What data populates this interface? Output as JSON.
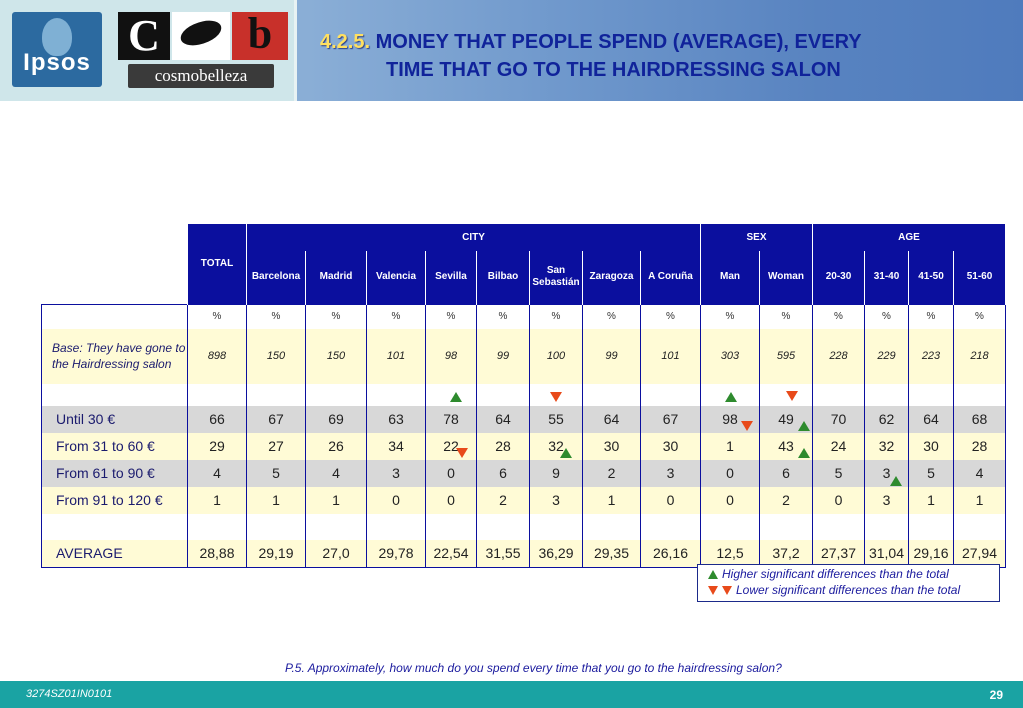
{
  "header": {
    "logo_ipsos": "Ipsos",
    "logo_cb_c": "C",
    "logo_cb_b": "b",
    "logo_cosmo": "cosmobelleza",
    "title_number": "4.2.5.",
    "title_line1": "MONEY THAT PEOPLE SPEND (AVERAGE), EVERY",
    "title_line2": "TIME THAT GO TO THE HAIRDRESSING SALON"
  },
  "table": {
    "total_label": "TOTAL",
    "group_city": "CITY",
    "group_sex": "SEX",
    "group_age": "AGE",
    "columns": [
      "Barcelona",
      "Madrid",
      "Valencia",
      "Sevilla",
      "Bilbao",
      "San Sebastián",
      "Zaragoza",
      "A Coruña",
      "Man",
      "Woman",
      "20-30",
      "31-40",
      "41-50",
      "51-60"
    ],
    "pct_symbol": "%",
    "base_label": "Base: They have gone to the Hairdressing salon",
    "base_values": [
      "898",
      "150",
      "150",
      "101",
      "98",
      "99",
      "100",
      "99",
      "101",
      "303",
      "595",
      "228",
      "229",
      "223",
      "218"
    ],
    "rows": [
      {
        "label": "Until 30 €",
        "values": [
          "66",
          "67",
          "69",
          "63",
          "78",
          "64",
          "55",
          "64",
          "67",
          "98",
          "49",
          "70",
          "62",
          "64",
          "68"
        ]
      },
      {
        "label": "From 31 to 60 €",
        "values": [
          "29",
          "27",
          "26",
          "34",
          "22",
          "28",
          "32",
          "30",
          "30",
          "1",
          "43",
          "24",
          "32",
          "30",
          "28"
        ]
      },
      {
        "label": "From 61 to 90 €",
        "values": [
          "4",
          "5",
          "4",
          "3",
          "0",
          "6",
          "9",
          "2",
          "3",
          "0",
          "6",
          "5",
          "3",
          "5",
          "4"
        ]
      },
      {
        "label": "From 91 to 120 €",
        "values": [
          "1",
          "1",
          "1",
          "0",
          "0",
          "2",
          "3",
          "1",
          "0",
          "0",
          "2",
          "0",
          "3",
          "1",
          "1"
        ]
      }
    ],
    "average_label": "AVERAGE",
    "average_values": [
      "28,88",
      "29,19",
      "27,0",
      "29,78",
      "22,54",
      "31,55",
      "36,29",
      "29,35",
      "26,16",
      "12,5",
      "37,2",
      "27,37",
      "31,04",
      "29,16",
      "27,94"
    ],
    "colors": {
      "header_bg": "#0b0f9e",
      "up": "#2e8b2e",
      "down": "#e84a1a",
      "row_gray": "#d8d8d8",
      "row_cream": "#fffbd6"
    }
  },
  "legend": {
    "higher": "Higher significant differences than the total",
    "lower": "Lower significant differences than the total"
  },
  "question": {
    "prefix": "P.5.",
    "text": "Approximately, how much do you spend every time that you go to the hairdressing salon?"
  },
  "footer": {
    "code": "3274SZ01IN0101",
    "page": "29"
  }
}
